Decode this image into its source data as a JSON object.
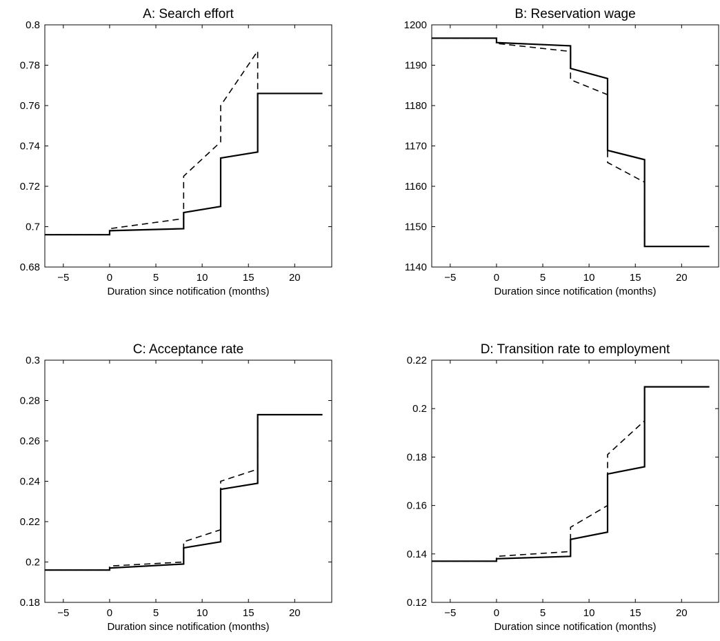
{
  "chart_data": [
    {
      "type": "line",
      "title": "A: Search effort",
      "xlabel": "Duration since notification (months)",
      "ylabel": "",
      "xlim": [
        -7,
        24
      ],
      "ylim": [
        0.68,
        0.8
      ],
      "xticks": [
        -5,
        0,
        5,
        10,
        15,
        20
      ],
      "yticks": [
        0.68,
        0.7,
        0.72,
        0.74,
        0.76,
        0.78,
        0.8
      ],
      "ytick_labels": [
        "0.68",
        "0.7",
        "0.72",
        "0.74",
        "0.76",
        "0.78",
        "0.8"
      ],
      "grid": false,
      "series": [
        {
          "style": "solid",
          "x": [
            -7,
            0,
            0,
            8,
            8,
            12,
            12,
            16,
            16,
            23
          ],
          "y": [
            0.696,
            0.696,
            0.698,
            0.699,
            0.707,
            0.71,
            0.734,
            0.737,
            0.766,
            0.766
          ]
        },
        {
          "style": "dashed",
          "x": [
            -7,
            0,
            0,
            8,
            8,
            12,
            12,
            16,
            16
          ],
          "y": [
            0.696,
            0.696,
            0.699,
            0.704,
            0.725,
            0.742,
            0.76,
            0.787,
            0.766
          ]
        }
      ]
    },
    {
      "type": "line",
      "title": "B: Reservation wage",
      "xlabel": "Duration since notification (months)",
      "ylabel": "",
      "xlim": [
        -7,
        24
      ],
      "ylim": [
        1140,
        1200
      ],
      "xticks": [
        -5,
        0,
        5,
        10,
        15,
        20
      ],
      "yticks": [
        1140,
        1150,
        1160,
        1170,
        1180,
        1190,
        1200
      ],
      "ytick_labels": [
        "1140",
        "1150",
        "1160",
        "1170",
        "1180",
        "1190",
        "1200"
      ],
      "grid": false,
      "series": [
        {
          "style": "solid",
          "x": [
            -7,
            0,
            0,
            8,
            8,
            12,
            12,
            16,
            16,
            23
          ],
          "y": [
            1196.7,
            1196.7,
            1195.6,
            1194.8,
            1189.2,
            1186.7,
            1168.9,
            1166.6,
            1145.1,
            1145.1
          ]
        },
        {
          "style": "dashed",
          "x": [
            -7,
            0,
            0,
            8,
            8,
            12,
            12,
            16,
            16
          ],
          "y": [
            1196.7,
            1196.7,
            1195.4,
            1193.4,
            1186.4,
            1182.7,
            1165.9,
            1161.0,
            1145.1
          ]
        }
      ]
    },
    {
      "type": "line",
      "title": "C: Acceptance rate",
      "xlabel": "Duration since notification (months)",
      "ylabel": "",
      "xlim": [
        -7,
        24
      ],
      "ylim": [
        0.18,
        0.3
      ],
      "xticks": [
        -5,
        0,
        5,
        10,
        15,
        20
      ],
      "yticks": [
        0.18,
        0.2,
        0.22,
        0.24,
        0.26,
        0.28,
        0.3
      ],
      "ytick_labels": [
        "0.18",
        "0.2",
        "0.22",
        "0.24",
        "0.26",
        "0.28",
        "0.3"
      ],
      "grid": false,
      "series": [
        {
          "style": "solid",
          "x": [
            -7,
            0,
            0,
            8,
            8,
            12,
            12,
            16,
            16,
            23
          ],
          "y": [
            0.196,
            0.196,
            0.197,
            0.199,
            0.207,
            0.21,
            0.236,
            0.239,
            0.273,
            0.273
          ]
        },
        {
          "style": "dashed",
          "x": [
            -7,
            0,
            0,
            8,
            8,
            12,
            12,
            16,
            16
          ],
          "y": [
            0.196,
            0.196,
            0.198,
            0.2,
            0.21,
            0.216,
            0.24,
            0.246,
            0.273
          ]
        }
      ]
    },
    {
      "type": "line",
      "title": "D: Transition rate to employment",
      "xlabel": "Duration since notification (months)",
      "ylabel": "",
      "xlim": [
        -7,
        24
      ],
      "ylim": [
        0.12,
        0.22
      ],
      "xticks": [
        -5,
        0,
        5,
        10,
        15,
        20
      ],
      "yticks": [
        0.12,
        0.14,
        0.16,
        0.18,
        0.2,
        0.22
      ],
      "ytick_labels": [
        "0.12",
        "0.14",
        "0.16",
        "0.18",
        "0.2",
        "0.22"
      ],
      "grid": false,
      "series": [
        {
          "style": "solid",
          "x": [
            -7,
            0,
            0,
            8,
            8,
            12,
            12,
            16,
            16,
            23
          ],
          "y": [
            0.137,
            0.137,
            0.138,
            0.139,
            0.146,
            0.149,
            0.173,
            0.176,
            0.209,
            0.209
          ]
        },
        {
          "style": "dashed",
          "x": [
            -7,
            0,
            0,
            8,
            8,
            12,
            12,
            16,
            16
          ],
          "y": [
            0.137,
            0.137,
            0.139,
            0.141,
            0.151,
            0.16,
            0.181,
            0.195,
            0.209
          ]
        }
      ]
    }
  ]
}
